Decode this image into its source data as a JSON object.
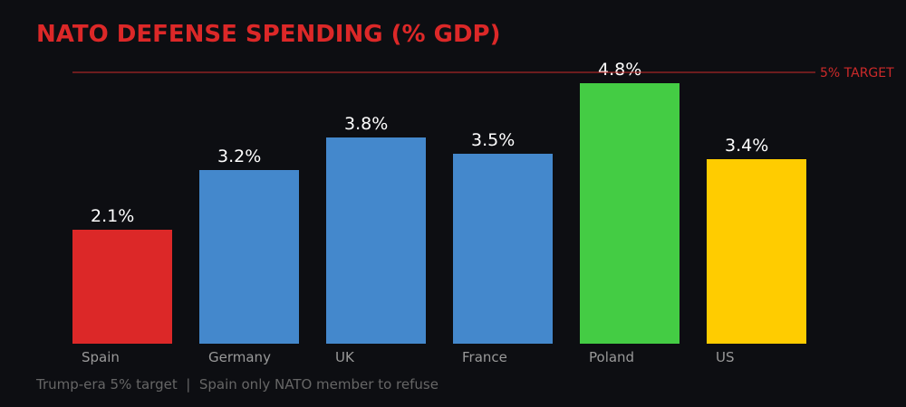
{
  "chart_data": {
    "type": "bar",
    "title": "NATO DEFENSE SPENDING (% GDP)",
    "subtitle": "Trump-era 5% target  |  Spain only NATO member to refuse",
    "categories": [
      "Spain",
      "Germany",
      "UK",
      "France",
      "Poland",
      "US"
    ],
    "values": [
      2.1,
      3.2,
      3.8,
      3.5,
      4.8,
      3.4
    ],
    "value_labels": [
      "2.1%",
      "3.2%",
      "3.8%",
      "3.5%",
      "4.8%",
      "3.4%"
    ],
    "colors": [
      "#dc2828",
      "#4488cc",
      "#4488cc",
      "#4488cc",
      "#44cc44",
      "#ffcc00"
    ],
    "ylim": [
      0,
      5
    ],
    "grid": false,
    "reference_line": {
      "value": 5,
      "label": "5% TARGET",
      "color": "#cc2a2a"
    },
    "xlabel": "",
    "ylabel": ""
  },
  "colors": {
    "background": "#0d0e12",
    "title": "#dc2828",
    "text": "#ffffff",
    "muted": "#999999",
    "subtitle": "#666666"
  }
}
